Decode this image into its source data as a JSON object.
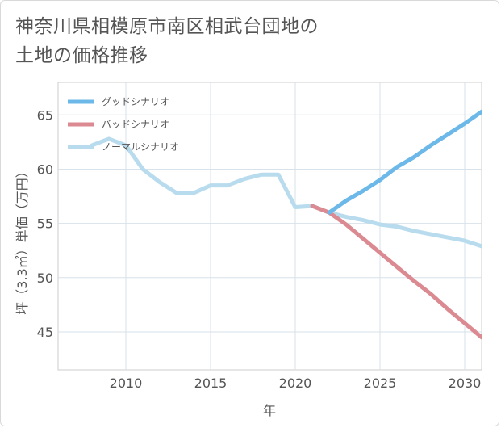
{
  "title": {
    "line1": "神奈川県相模原市南区相武台団地の",
    "line2": "土地の価格推移"
  },
  "chart_data": {
    "type": "line",
    "title": "神奈川県相模原市南区相武台団地の土地の価格推移",
    "xlabel": "年",
    "ylabel": "坪（3.3㎡）単価（万円）",
    "xlim": [
      2006,
      2031
    ],
    "ylim": [
      41.5,
      68
    ],
    "xticks": [
      2010,
      2015,
      2020,
      2025,
      2030
    ],
    "yticks": [
      45,
      50,
      55,
      60,
      65
    ],
    "grid": true,
    "legend_position": "top-left",
    "series": [
      {
        "name": "グッドシナリオ",
        "color": "#6cb8e8",
        "x": [
          2022,
          2023,
          2024,
          2025,
          2026,
          2027,
          2028,
          2029,
          2030,
          2031
        ],
        "y": [
          56.0,
          57.1,
          58.0,
          59.0,
          60.2,
          61.1,
          62.2,
          63.2,
          64.2,
          65.3
        ]
      },
      {
        "name": "バッドシナリオ",
        "color": "#db8a92",
        "x": [
          2021,
          2022,
          2023,
          2024,
          2025,
          2026,
          2027,
          2028,
          2029,
          2030,
          2031
        ],
        "y": [
          56.6,
          56.0,
          54.9,
          53.6,
          52.3,
          51.0,
          49.7,
          48.5,
          47.1,
          45.8,
          44.5
        ]
      },
      {
        "name": "ノーマルシナリオ",
        "color": "#b8dcee",
        "x": [
          2008,
          2009,
          2010,
          2011,
          2012,
          2013,
          2014,
          2015,
          2016,
          2017,
          2018,
          2019,
          2020,
          2021,
          2022,
          2023,
          2024,
          2025,
          2026,
          2027,
          2028,
          2029,
          2030,
          2031
        ],
        "y": [
          62.2,
          62.8,
          62.2,
          60.0,
          58.8,
          57.8,
          57.8,
          58.5,
          58.5,
          59.1,
          59.5,
          59.5,
          56.5,
          56.6,
          56.0,
          55.6,
          55.3,
          54.9,
          54.7,
          54.3,
          54.0,
          53.7,
          53.4,
          52.9
        ]
      }
    ]
  }
}
